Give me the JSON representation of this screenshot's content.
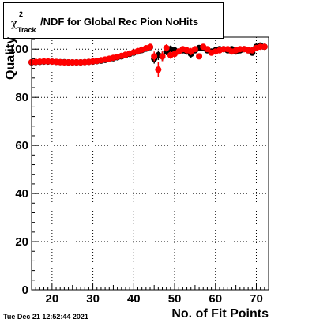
{
  "timestamp": "Tue Dec 21 12:52:44 2021",
  "title": {
    "chi": "χ",
    "superscript": "2",
    "subscript": "Track",
    "rest": "/NDF for Global Rec Pion NoHits"
  },
  "chart_data": {
    "type": "scatter",
    "xlabel": "No. of Fit Points",
    "ylabel": "Quality",
    "xlim": [
      15,
      73
    ],
    "ylim": [
      0,
      105
    ],
    "xticks": [
      20,
      30,
      40,
      50,
      60,
      70
    ],
    "yticks": [
      0,
      20,
      40,
      60,
      80,
      100
    ],
    "grid": true,
    "legend": "none",
    "series": [
      {
        "color": "#000000",
        "x": [
          15,
          16,
          17,
          18,
          19,
          20,
          21,
          22,
          23,
          24,
          25,
          26,
          27,
          28,
          29,
          30,
          31,
          32,
          33,
          34,
          35,
          36,
          37,
          38,
          39,
          40,
          41,
          42,
          43,
          44,
          45,
          46,
          47,
          48,
          49,
          50,
          51,
          52,
          53,
          54,
          55,
          56,
          57,
          58,
          59,
          60,
          61,
          62,
          63,
          64,
          65,
          66,
          67,
          68,
          69,
          70,
          71,
          72
        ],
        "y": [
          94.5,
          94.6,
          94.7,
          94.8,
          94.8,
          94.8,
          94.7,
          94.6,
          94.6,
          94.5,
          94.5,
          94.5,
          94.5,
          94.6,
          94.7,
          94.8,
          95.0,
          95.2,
          95.5,
          95.8,
          96.2,
          96.6,
          97.0,
          97.5,
          98.0,
          98.5,
          99.0,
          99.6,
          100.2,
          100.8,
          96.0,
          97.5,
          97.0,
          99.0,
          100.0,
          99.5,
          99.0,
          99.5,
          99.0,
          98.0,
          99.5,
          100.5,
          100.5,
          99.5,
          99.0,
          99.5,
          100.0,
          100.0,
          99.5,
          100.0,
          99.0,
          99.5,
          100.0,
          99.5,
          98.5,
          101.0,
          101.5,
          101.0
        ],
        "err": [
          0.3,
          0.3,
          0.3,
          0.3,
          0.3,
          0.3,
          0.3,
          0.3,
          0.3,
          0.3,
          0.3,
          0.3,
          0.3,
          0.3,
          0.3,
          0.3,
          0.3,
          0.3,
          0.3,
          0.3,
          0.3,
          0.3,
          0.3,
          0.3,
          0.3,
          0.3,
          0.3,
          0.3,
          0.3,
          0.3,
          2.0,
          2.0,
          2.0,
          1.5,
          1.5,
          1.5,
          1.2,
          1.2,
          1.2,
          1.5,
          1.0,
          1.0,
          1.0,
          1.0,
          1.0,
          0.8,
          0.8,
          0.8,
          0.8,
          0.8,
          0.8,
          0.8,
          0.8,
          0.8,
          1.0,
          1.0,
          1.0,
          1.0
        ]
      },
      {
        "color": "#ff0000",
        "x": [
          15,
          16,
          17,
          18,
          19,
          20,
          21,
          22,
          23,
          24,
          25,
          26,
          27,
          28,
          29,
          30,
          31,
          32,
          33,
          34,
          35,
          36,
          37,
          38,
          39,
          40,
          41,
          42,
          43,
          44,
          45,
          46,
          47,
          48,
          49,
          50,
          51,
          52,
          53,
          54,
          55,
          56,
          57,
          58,
          59,
          60,
          61,
          62,
          63,
          64,
          65,
          66,
          67,
          68,
          69,
          70,
          71,
          72
        ],
        "y": [
          94.6,
          94.7,
          94.8,
          94.9,
          94.9,
          94.8,
          94.7,
          94.6,
          94.5,
          94.5,
          94.5,
          94.5,
          94.5,
          94.6,
          94.7,
          94.9,
          95.1,
          95.4,
          95.7,
          96.0,
          96.4,
          96.8,
          97.2,
          97.7,
          98.2,
          98.7,
          99.2,
          99.8,
          100.4,
          101.0,
          97.0,
          91.5,
          97.0,
          100.5,
          97.5,
          98.0,
          99.0,
          100.0,
          99.5,
          99.0,
          100.0,
          97.0,
          101.0,
          100.0,
          98.5,
          99.0,
          99.5,
          100.0,
          100.0,
          99.0,
          99.5,
          100.0,
          100.0,
          99.5,
          99.5,
          100.5,
          101.0,
          101.0
        ],
        "err": [
          0.3,
          0.3,
          0.3,
          0.3,
          0.3,
          0.3,
          0.3,
          0.3,
          0.3,
          0.3,
          0.3,
          0.3,
          0.3,
          0.3,
          0.3,
          0.3,
          0.3,
          0.3,
          0.3,
          0.3,
          0.3,
          0.3,
          0.3,
          0.3,
          0.3,
          0.3,
          0.3,
          0.3,
          0.3,
          0.3,
          2.0,
          3.0,
          2.0,
          1.5,
          1.5,
          1.5,
          1.2,
          1.2,
          1.2,
          1.5,
          1.0,
          1.0,
          1.0,
          1.0,
          1.0,
          0.8,
          0.8,
          0.8,
          0.8,
          0.8,
          0.8,
          0.8,
          0.8,
          0.8,
          1.0,
          1.0,
          1.0,
          1.0
        ]
      }
    ]
  }
}
